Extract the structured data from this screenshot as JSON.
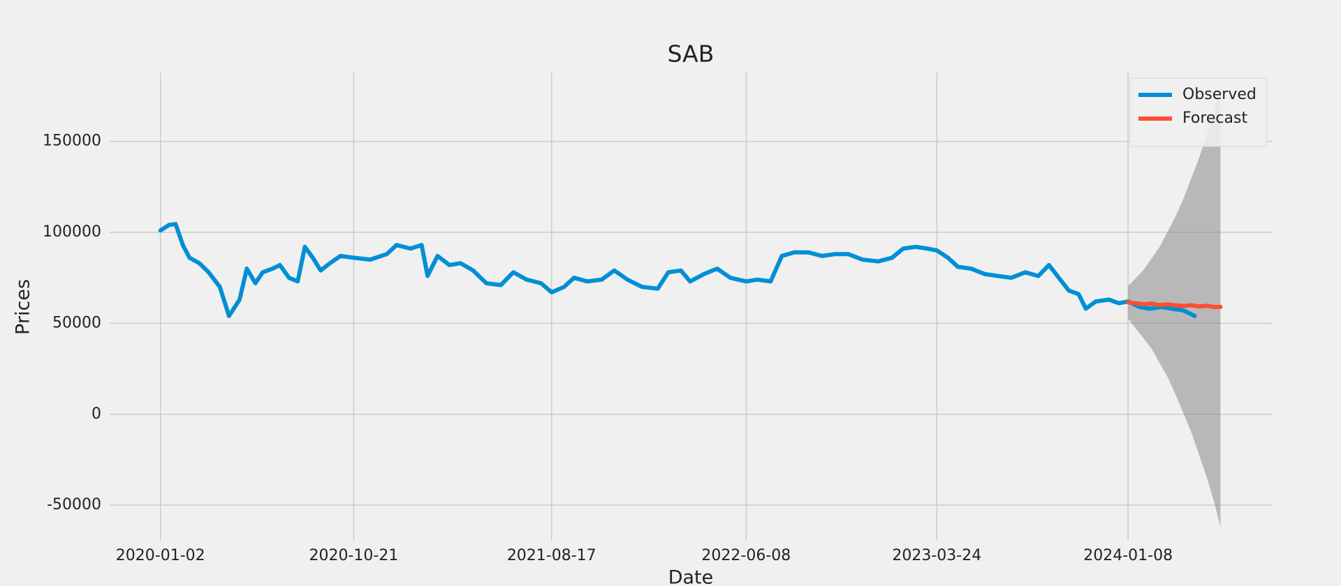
{
  "chart_data": {
    "type": "line",
    "title": "SAB",
    "x_label": "Date",
    "y_label": "Prices",
    "xlim": [
      "2019-10-17",
      "2024-08-14"
    ],
    "xticks": [
      "2020-01-02",
      "2020-10-21",
      "2021-08-17",
      "2022-06-08",
      "2023-03-24",
      "2024-01-08"
    ],
    "ylim": [
      -69500,
      187800
    ],
    "yticks": [
      -50000,
      0,
      50000,
      100000,
      150000
    ],
    "grid": true,
    "legend": "upper right",
    "series": [
      {
        "name": "Observed",
        "color": "#008fd5",
        "x": [
          "2020-01-02",
          "2020-01-15",
          "2020-01-25",
          "2020-02-05",
          "2020-02-15",
          "2020-03-01",
          "2020-03-15",
          "2020-04-01",
          "2020-04-15",
          "2020-05-01",
          "2020-05-12",
          "2020-05-25",
          "2020-06-05",
          "2020-06-20",
          "2020-07-01",
          "2020-07-15",
          "2020-07-28",
          "2020-08-08",
          "2020-08-20",
          "2020-09-01",
          "2020-09-15",
          "2020-10-01",
          "2020-10-21",
          "2020-11-15",
          "2020-12-10",
          "2020-12-25",
          "2021-01-15",
          "2021-02-01",
          "2021-02-10",
          "2021-02-25",
          "2021-03-15",
          "2021-04-01",
          "2021-04-20",
          "2021-05-10",
          "2021-06-01",
          "2021-06-20",
          "2021-07-10",
          "2021-08-01",
          "2021-08-17",
          "2021-09-05",
          "2021-09-20",
          "2021-10-10",
          "2021-11-01",
          "2021-11-20",
          "2021-12-10",
          "2022-01-01",
          "2022-01-25",
          "2022-02-10",
          "2022-03-01",
          "2022-03-15",
          "2022-04-05",
          "2022-04-25",
          "2022-05-15",
          "2022-06-08",
          "2022-06-25",
          "2022-07-15",
          "2022-08-01",
          "2022-08-20",
          "2022-09-10",
          "2022-10-01",
          "2022-10-20",
          "2022-11-10",
          "2022-12-01",
          "2022-12-25",
          "2023-01-15",
          "2023-02-01",
          "2023-02-20",
          "2023-03-10",
          "2023-03-24",
          "2023-04-10",
          "2023-04-25",
          "2023-05-15",
          "2023-06-05",
          "2023-06-25",
          "2023-07-15",
          "2023-08-05",
          "2023-08-25",
          "2023-09-10",
          "2023-09-25",
          "2023-10-10",
          "2023-10-25",
          "2023-11-05",
          "2023-11-20",
          "2023-12-10",
          "2023-12-25",
          "2024-01-08",
          "2024-01-25",
          "2024-02-10",
          "2024-02-28",
          "2024-03-15",
          "2024-04-01",
          "2024-04-18"
        ],
        "values": [
          101000,
          104000,
          104500,
          93000,
          86000,
          83000,
          78000,
          70000,
          54000,
          63000,
          80000,
          72000,
          78000,
          80000,
          82000,
          75000,
          73000,
          92000,
          86000,
          79000,
          83000,
          87000,
          86000,
          85000,
          88000,
          93000,
          91000,
          93000,
          76000,
          87000,
          82000,
          83000,
          79000,
          72000,
          71000,
          78000,
          74000,
          72000,
          67000,
          70000,
          75000,
          73000,
          74000,
          79000,
          74000,
          70000,
          69000,
          78000,
          79000,
          73000,
          77000,
          80000,
          75000,
          73000,
          74000,
          73000,
          87000,
          89000,
          89000,
          87000,
          88000,
          88000,
          85000,
          84000,
          86000,
          91000,
          92000,
          91000,
          90000,
          86000,
          81000,
          80000,
          77000,
          76000,
          75000,
          78000,
          76000,
          82000,
          75000,
          68000,
          66000,
          58000,
          62000,
          63000,
          61000,
          62000,
          59000,
          58000,
          59000,
          58000,
          57000,
          54000
        ]
      },
      {
        "name": "Forecast",
        "color": "#fc4f30",
        "band_color": "#808080",
        "x": [
          "2024-01-08",
          "2024-01-20",
          "2024-02-01",
          "2024-02-13",
          "2024-02-25",
          "2024-03-08",
          "2024-03-20",
          "2024-04-01",
          "2024-04-13",
          "2024-04-25",
          "2024-05-07",
          "2024-05-18",
          "2024-05-27"
        ],
        "values": [
          61500,
          61000,
          60500,
          60800,
          60000,
          60400,
          59800,
          59500,
          59900,
          59200,
          59600,
          58900,
          59000
        ],
        "upper": [
          70500,
          75000,
          79500,
          85800,
          92000,
          100400,
          108800,
          118500,
          129900,
          141200,
          154600,
          166900,
          180000
        ],
        "lower": [
          52500,
          47000,
          41500,
          35800,
          28000,
          20400,
          10800,
          500,
          -10100,
          -22800,
          -35400,
          -49100,
          -62000
        ]
      }
    ]
  }
}
